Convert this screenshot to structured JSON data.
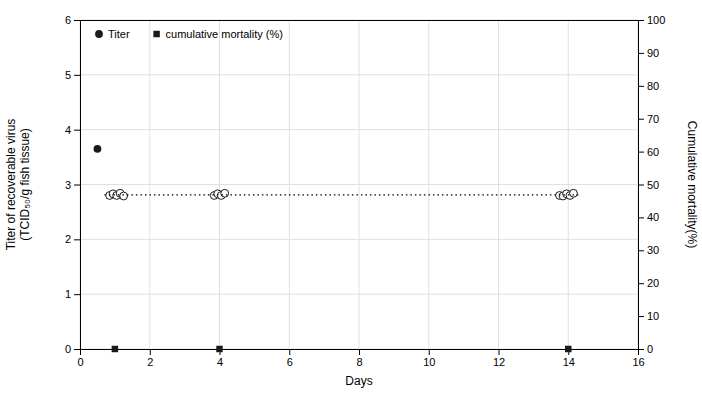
{
  "chart_data": {
    "type": "scatter",
    "xlabel": "Days",
    "ylabel": "Titer of recoverable virus\n(TCID₅₀/g fish tissue)",
    "y2label": "Cumulative mortality(%)",
    "xlim": [
      0,
      16
    ],
    "ylim": [
      0,
      6
    ],
    "y2lim": [
      0,
      100
    ],
    "xticks": [
      0,
      2,
      4,
      6,
      8,
      10,
      12,
      14,
      16
    ],
    "yticks": [
      0,
      1,
      2,
      3,
      4,
      5,
      6
    ],
    "y2ticks": [
      0,
      10,
      20,
      30,
      40,
      50,
      60,
      70,
      80,
      90,
      100
    ],
    "grid": true,
    "legend": "upper left",
    "series": [
      {
        "name": "Titer",
        "type": "scatter",
        "marker": "circle",
        "color": "#1a1a1a",
        "x": [
          0.5
        ],
        "values": [
          3.65
        ]
      },
      {
        "type": "scatter",
        "marker": "circle-open",
        "color": "#1a1a1a",
        "x": [
          0.85,
          0.95,
          1.05,
          1.15,
          1.25,
          3.85,
          3.95,
          4.05,
          4.15,
          13.75,
          13.85,
          13.95,
          14.05,
          14.15
        ],
        "values": [
          2.8,
          2.83,
          2.8,
          2.84,
          2.79,
          2.8,
          2.83,
          2.8,
          2.84,
          2.8,
          2.79,
          2.83,
          2.8,
          2.84
        ]
      },
      {
        "type": "line",
        "line_style": "dotted",
        "color": "black",
        "x": [
          0.7,
          14.3
        ],
        "values": [
          2.81,
          2.81
        ]
      },
      {
        "name": "cumulative mortality (%)",
        "type": "scatter",
        "marker": "square",
        "color": "#1a1a1a",
        "x": [
          1.0,
          4.0,
          14.0
        ],
        "values": [
          0.0,
          0.0,
          0.0
        ]
      }
    ]
  }
}
